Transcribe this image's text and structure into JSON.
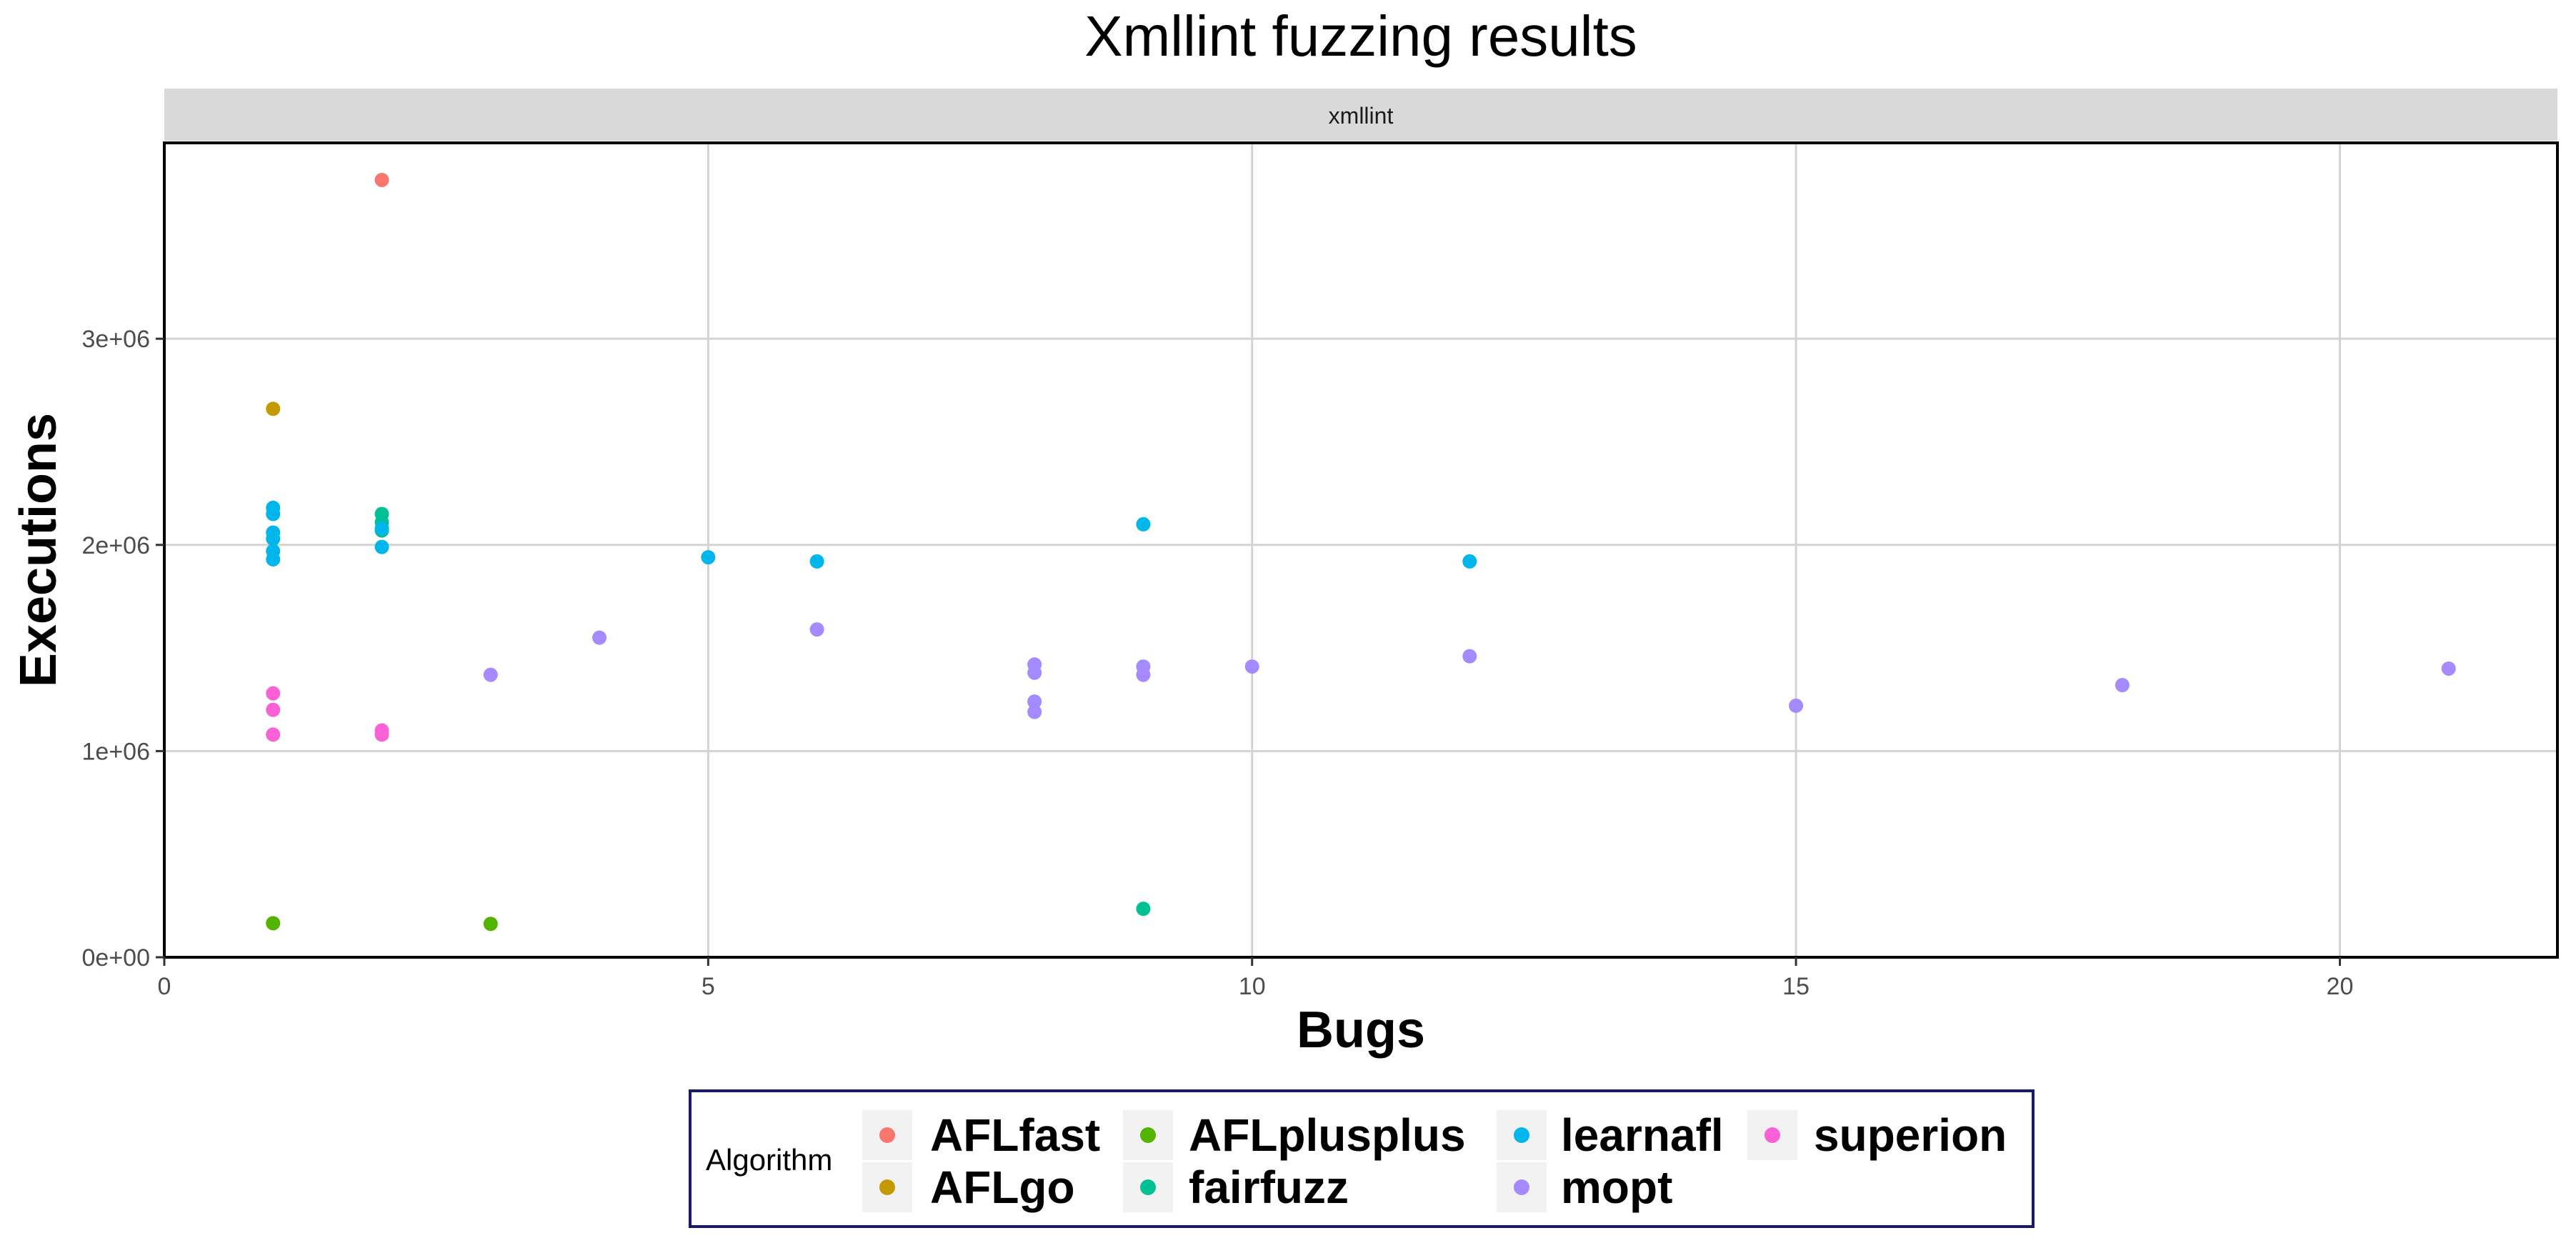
{
  "chart_data": {
    "type": "scatter",
    "title": "Xmllint fuzzing results",
    "facet_label": "xmllint",
    "xlabel": "Bugs",
    "ylabel": "Executions",
    "xlim": [
      0,
      22
    ],
    "ylim": [
      0,
      3950000
    ],
    "x_ticks": [
      0,
      5,
      10,
      15,
      20
    ],
    "x_tick_labels": [
      "0",
      "5",
      "10",
      "15",
      "20"
    ],
    "y_ticks": [
      0,
      1000000,
      2000000,
      3000000
    ],
    "y_tick_labels": [
      "0e+00",
      "1e+06",
      "2e+06",
      "3e+06"
    ],
    "grid": true,
    "legend": {
      "title": "Algorithm",
      "position": "bottom",
      "entries": [
        "AFLfast",
        "AFLgo",
        "AFLplusplus",
        "fairfuzz",
        "learnafl",
        "mopt",
        "superion"
      ]
    },
    "series": [
      {
        "name": "AFLfast",
        "color": "#F8766D",
        "points": [
          [
            2,
            3770000
          ]
        ]
      },
      {
        "name": "AFLgo",
        "color": "#C49A00",
        "points": [
          [
            1,
            2660000
          ]
        ]
      },
      {
        "name": "AFLplusplus",
        "color": "#53B400",
        "points": [
          [
            1,
            165000
          ],
          [
            3,
            162000
          ]
        ]
      },
      {
        "name": "fairfuzz",
        "color": "#00C094",
        "points": [
          [
            2,
            2150000
          ],
          [
            2,
            2110000
          ],
          [
            2,
            2070000
          ],
          [
            9,
            235000
          ]
        ]
      },
      {
        "name": "learnafl",
        "color": "#00B6EB",
        "points": [
          [
            1,
            2180000
          ],
          [
            1,
            2150000
          ],
          [
            1,
            2060000
          ],
          [
            1,
            2030000
          ],
          [
            1,
            1970000
          ],
          [
            1,
            1930000
          ],
          [
            2,
            2080000
          ],
          [
            2,
            1990000
          ],
          [
            5,
            1940000
          ],
          [
            6,
            1920000
          ],
          [
            9,
            2100000
          ],
          [
            12,
            1920000
          ]
        ]
      },
      {
        "name": "mopt",
        "color": "#A58AFF",
        "points": [
          [
            3,
            1370000
          ],
          [
            4,
            1550000
          ],
          [
            6,
            1590000
          ],
          [
            8,
            1420000
          ],
          [
            8,
            1380000
          ],
          [
            8,
            1240000
          ],
          [
            8,
            1190000
          ],
          [
            9,
            1410000
          ],
          [
            9,
            1370000
          ],
          [
            10,
            1410000
          ],
          [
            12,
            1460000
          ],
          [
            15,
            1220000
          ],
          [
            18,
            1320000
          ],
          [
            21,
            1400000
          ]
        ]
      },
      {
        "name": "superion",
        "color": "#FB61D7",
        "points": [
          [
            1,
            1280000
          ],
          [
            1,
            1200000
          ],
          [
            1,
            1080000
          ],
          [
            2,
            1100000
          ],
          [
            2,
            1080000
          ]
        ]
      }
    ]
  }
}
